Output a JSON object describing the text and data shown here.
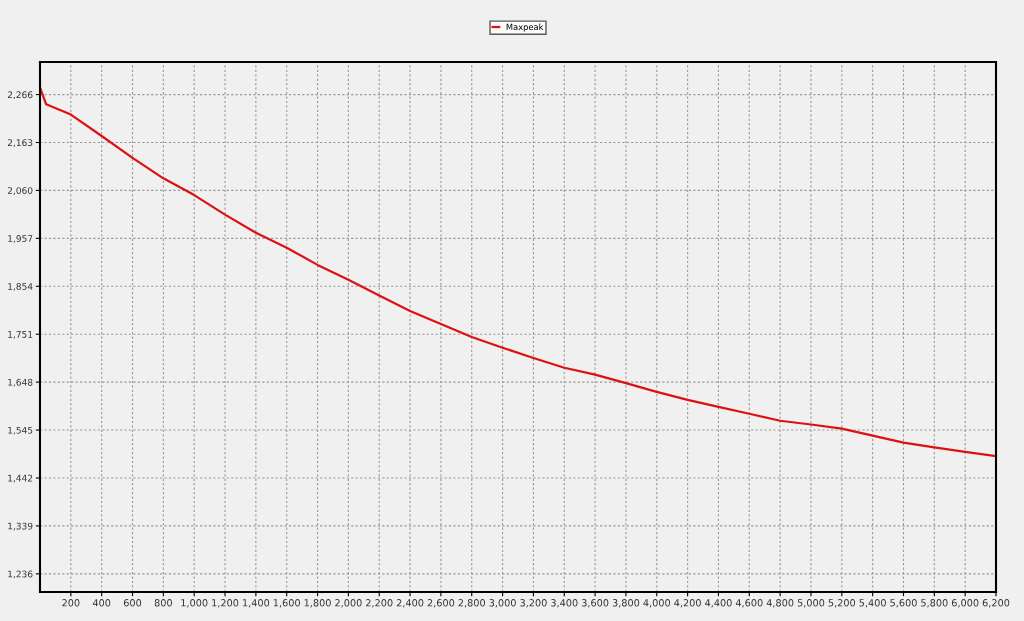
{
  "chart_data": {
    "type": "line",
    "x": [
      0,
      40,
      200,
      400,
      600,
      800,
      1000,
      1200,
      1400,
      1600,
      1800,
      2000,
      2200,
      2400,
      2600,
      2800,
      3000,
      3200,
      3400,
      3600,
      3800,
      4000,
      4200,
      4400,
      4600,
      4800,
      5000,
      5200,
      5400,
      5600,
      5800,
      6000,
      6200
    ],
    "series": [
      {
        "name": "Maxpeak",
        "color": "#dd1111",
        "values": [
          2281,
          2245,
          2223,
          2177,
          2130,
          2086,
          2050,
          2008,
          1969,
          1937,
          1900,
          1868,
          1834,
          1801,
          1773,
          1745,
          1722,
          1700,
          1679,
          1664,
          1646,
          1627,
          1610,
          1595,
          1580,
          1565,
          1557,
          1548,
          1533,
          1518,
          1508,
          1498,
          1489
        ]
      }
    ],
    "xlim": [
      0,
      6200
    ],
    "xticks": [
      {
        "value": 200,
        "label": "200"
      },
      {
        "value": 400,
        "label": "400"
      },
      {
        "value": 600,
        "label": "600"
      },
      {
        "value": 800,
        "label": "800"
      },
      {
        "value": 1000,
        "label": "1,000"
      },
      {
        "value": 1200,
        "label": "1,200"
      },
      {
        "value": 1400,
        "label": "1,400"
      },
      {
        "value": 1600,
        "label": "1,600"
      },
      {
        "value": 1800,
        "label": "1,800"
      },
      {
        "value": 2000,
        "label": "2,000"
      },
      {
        "value": 2200,
        "label": "2,200"
      },
      {
        "value": 2400,
        "label": "2,400"
      },
      {
        "value": 2600,
        "label": "2,600"
      },
      {
        "value": 2800,
        "label": "2,800"
      },
      {
        "value": 3000,
        "label": "3,000"
      },
      {
        "value": 3200,
        "label": "3,200"
      },
      {
        "value": 3400,
        "label": "3,400"
      },
      {
        "value": 3600,
        "label": "3,600"
      },
      {
        "value": 3800,
        "label": "3,800"
      },
      {
        "value": 4000,
        "label": "4,000"
      },
      {
        "value": 4200,
        "label": "4,200"
      },
      {
        "value": 4400,
        "label": "4,400"
      },
      {
        "value": 4600,
        "label": "4,600"
      },
      {
        "value": 4800,
        "label": "4,800"
      },
      {
        "value": 5000,
        "label": "5,000"
      },
      {
        "value": 5200,
        "label": "5,200"
      },
      {
        "value": 5400,
        "label": "5,400"
      },
      {
        "value": 5600,
        "label": "5,600"
      },
      {
        "value": 5800,
        "label": "5,800"
      },
      {
        "value": 6000,
        "label": "6,000"
      },
      {
        "value": 6200,
        "label": "6,200"
      }
    ],
    "ylim": [
      1197,
      2336
    ],
    "yticks": [
      {
        "value": 1236,
        "label": "1,236"
      },
      {
        "value": 1339,
        "label": "1,339"
      },
      {
        "value": 1442,
        "label": "1,442"
      },
      {
        "value": 1545,
        "label": "1,545"
      },
      {
        "value": 1648,
        "label": "1,648"
      },
      {
        "value": 1751,
        "label": "1,751"
      },
      {
        "value": 1854,
        "label": "1,854"
      },
      {
        "value": 1957,
        "label": "1,957"
      },
      {
        "value": 2060,
        "label": "2,060"
      },
      {
        "value": 2163,
        "label": "2,163"
      },
      {
        "value": 2266,
        "label": "2,266"
      }
    ],
    "grid": true,
    "legend": "top",
    "marker": "none",
    "line_style": "solid"
  }
}
